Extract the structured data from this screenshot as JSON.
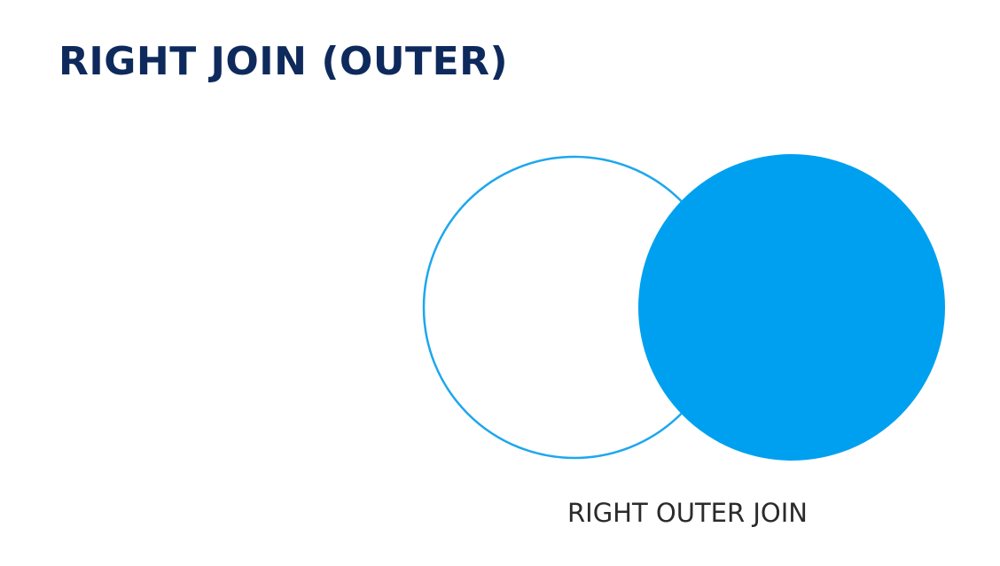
{
  "slide": {
    "title": "RIGHT JOIN (OUTER)",
    "caption": "RIGHT OUTER JOIN"
  },
  "diagram": {
    "type": "venn",
    "sets": [
      {
        "role": "left",
        "highlighted": false
      },
      {
        "role": "right",
        "highlighted": true
      }
    ]
  },
  "colors": {
    "title": "#0e2a5c",
    "caption": "#2b2b2b",
    "accent": "#00a0f0",
    "outline": "#1da7ee",
    "background": "#ffffff"
  }
}
